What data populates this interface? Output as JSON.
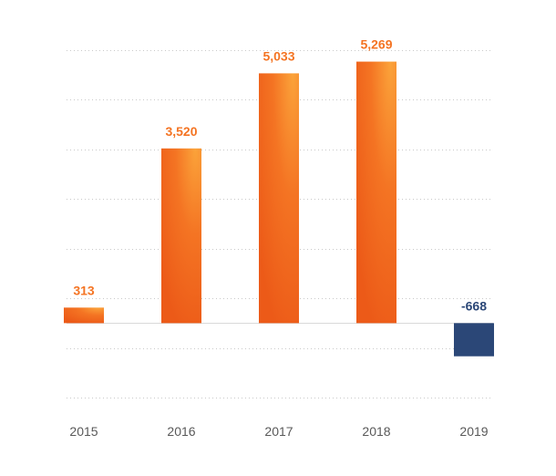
{
  "chart_data": {
    "type": "bar",
    "categories": [
      "2015",
      "2016",
      "2017",
      "2018",
      "2019"
    ],
    "values": [
      313,
      3520,
      5033,
      5269,
      -668
    ],
    "value_labels": [
      "313",
      "3,520",
      "5,033",
      "5,269",
      "-668"
    ],
    "title": "",
    "xlabel": "",
    "ylabel": "",
    "ylim": [
      -1500,
      5500
    ],
    "grid": true,
    "legend": "none",
    "colors": {
      "positive": "#f47423",
      "positive_highlight": "#fba33a",
      "positive_shadow": "#ec5a18",
      "negative": "#2b4777",
      "positive_label": "#f47423",
      "negative_label": "#2b4777",
      "tick_label": "#595959"
    }
  }
}
